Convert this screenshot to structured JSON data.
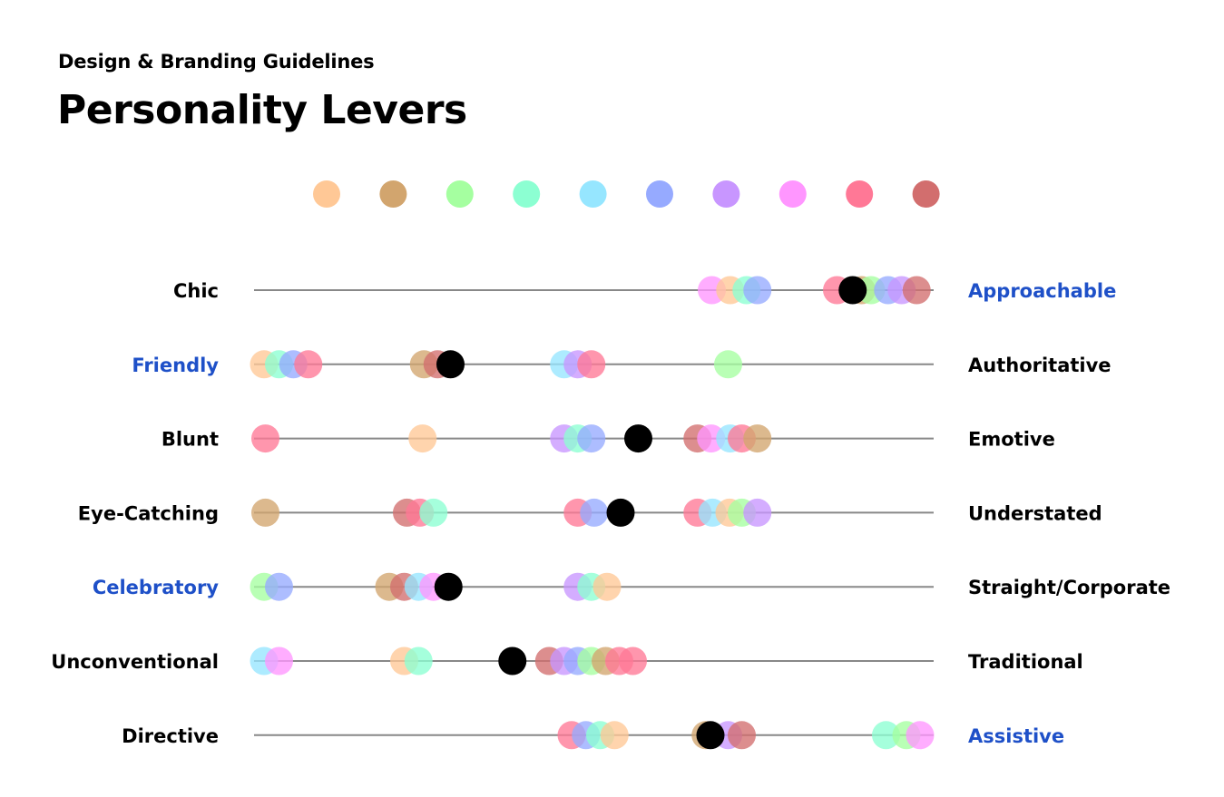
{
  "header": {
    "subtitle": "Design & Branding Guidelines",
    "title": "Personality Levers"
  },
  "chart_data": {
    "type": "scatter",
    "colors": [
      "#FFC896",
      "#D2A56E",
      "#A5FFA0",
      "#8CFFD2",
      "#96E6FF",
      "#96AAFF",
      "#C896FF",
      "#FF96FF",
      "#FF7896",
      "#D26E6E"
    ],
    "marker_color": "#000000",
    "line_color": "#888888",
    "highlight_color": "#1E50C8",
    "label_color": "#000000",
    "xlim": [
      0,
      1
    ],
    "rows": [
      {
        "left": "Chic",
        "right": "Approachable",
        "highlight": "right",
        "points": [
          [
            0.674,
            7
          ],
          [
            0.701,
            0
          ],
          [
            0.725,
            3
          ],
          [
            0.741,
            5
          ],
          [
            0.858,
            8
          ],
          [
            0.894,
            1
          ],
          [
            0.908,
            2
          ],
          [
            0.933,
            5
          ],
          [
            0.953,
            6
          ],
          [
            0.975,
            9
          ]
        ],
        "marker": 0.881
      },
      {
        "left": "Friendly",
        "right": "Authoritative",
        "highlight": "left",
        "points": [
          [
            0.016,
            0
          ],
          [
            0.038,
            3
          ],
          [
            0.059,
            5
          ],
          [
            0.081,
            8
          ],
          [
            0.251,
            1
          ],
          [
            0.271,
            9
          ],
          [
            0.457,
            4
          ],
          [
            0.477,
            6
          ],
          [
            0.497,
            8
          ],
          [
            0.698,
            2
          ]
        ],
        "marker": 0.29
      },
      {
        "left": "Blunt",
        "right": "Emotive",
        "highlight": null,
        "points": [
          [
            0.018,
            8
          ],
          [
            0.249,
            0
          ],
          [
            0.457,
            6
          ],
          [
            0.477,
            3
          ],
          [
            0.497,
            5
          ],
          [
            0.653,
            9
          ],
          [
            0.673,
            7
          ],
          [
            0.701,
            4
          ],
          [
            0.718,
            8
          ],
          [
            0.741,
            1
          ]
        ],
        "marker": 0.566
      },
      {
        "left": "Eye-Catching",
        "right": "Understated",
        "highlight": null,
        "points": [
          [
            0.018,
            1
          ],
          [
            0.226,
            9
          ],
          [
            0.245,
            8
          ],
          [
            0.265,
            3
          ],
          [
            0.477,
            8
          ],
          [
            0.501,
            5
          ],
          [
            0.653,
            8
          ],
          [
            0.675,
            4
          ],
          [
            0.7,
            0
          ],
          [
            0.718,
            2
          ],
          [
            0.741,
            6
          ]
        ],
        "marker": 0.54
      },
      {
        "left": "Celebratory",
        "right": "Straight/Corporate",
        "highlight": "left",
        "points": [
          [
            0.016,
            2
          ],
          [
            0.038,
            5
          ],
          [
            0.2,
            1
          ],
          [
            0.222,
            9
          ],
          [
            0.243,
            4
          ],
          [
            0.265,
            7
          ],
          [
            0.477,
            6
          ],
          [
            0.497,
            3
          ],
          [
            0.52,
            0
          ]
        ],
        "marker": 0.287
      },
      {
        "left": "Unconventional",
        "right": "Traditional",
        "highlight": null,
        "points": [
          [
            0.016,
            4
          ],
          [
            0.038,
            7
          ],
          [
            0.222,
            0
          ],
          [
            0.243,
            3
          ],
          [
            0.435,
            9
          ],
          [
            0.457,
            6
          ],
          [
            0.477,
            5
          ],
          [
            0.497,
            2
          ],
          [
            0.518,
            1
          ],
          [
            0.538,
            8
          ],
          [
            0.558,
            8
          ]
        ],
        "marker": 0.381
      },
      {
        "left": "Directive",
        "right": "Assistive",
        "highlight": "right",
        "points": [
          [
            0.468,
            8
          ],
          [
            0.489,
            5
          ],
          [
            0.51,
            3
          ],
          [
            0.531,
            0
          ],
          [
            0.665,
            1
          ],
          [
            0.698,
            6
          ],
          [
            0.718,
            9
          ],
          [
            0.93,
            3
          ],
          [
            0.96,
            2
          ],
          [
            0.98,
            7
          ]
        ],
        "marker": 0.672
      }
    ]
  }
}
